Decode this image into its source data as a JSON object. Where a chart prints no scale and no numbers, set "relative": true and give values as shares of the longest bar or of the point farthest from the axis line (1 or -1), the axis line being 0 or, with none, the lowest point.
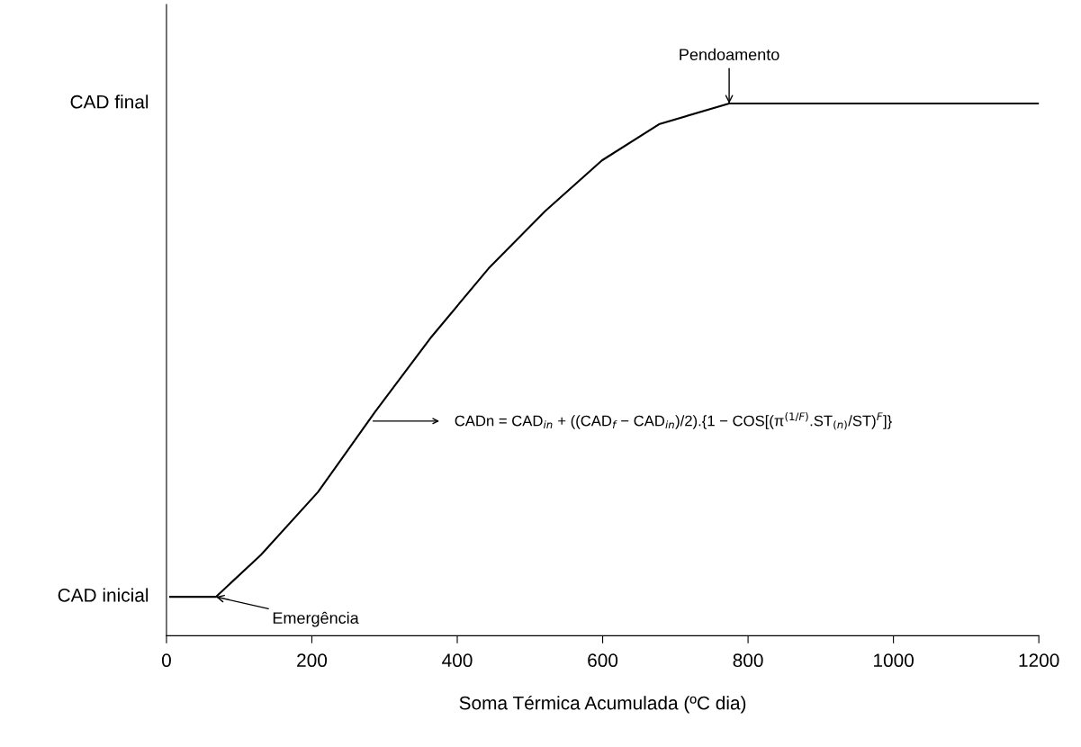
{
  "chart_data": {
    "type": "line",
    "xlabel": "Soma Térmica Acumulada (ºC dia)",
    "relative": true,
    "x": [
      5,
      68,
      130,
      208.5,
      286.7,
      364.8,
      443,
      521,
      599,
      677.5,
      774,
      1200
    ],
    "values": [
      0.073,
      0.073,
      0.152,
      0.27,
      0.42,
      0.562,
      0.69,
      0.798,
      0.893,
      0.961,
      1,
      1
    ],
    "color": "#000000",
    "xlim": [
      0,
      1200
    ],
    "xticks": [
      0,
      200,
      400,
      600,
      800,
      1000,
      1200
    ],
    "grid": false,
    "marker": "none",
    "line_style": "solid",
    "annotations": [
      "CAD inicial",
      "CAD final",
      {
        "text": "Emergência",
        "x": 68,
        "y": 0.073
      },
      {
        "text": "Pendoamento",
        "x": 774,
        "y": 1
      },
      "CADn = CAD$_{in}$ + ((CAD$_{f}$ − CAD$_{in}$)/2).{1 − COS[(π$^{(1/F)}$.ST$_{(n)}$/ST)$^{F}$]}"
    ]
  }
}
